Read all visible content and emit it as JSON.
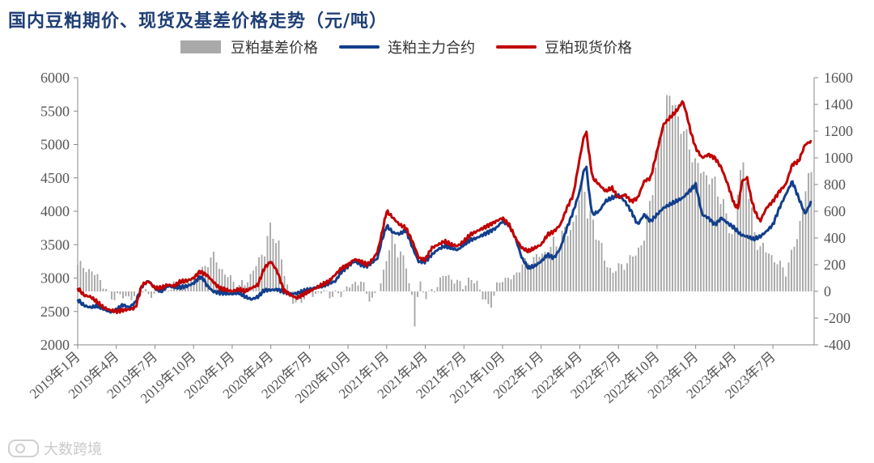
{
  "chart_data": {
    "type": "bar+line",
    "title": "国内豆粕期价、现货及基差价格走势（元/吨）",
    "legend": {
      "basis_label": "豆粕基差价格",
      "futures_label": "连粕主力合约",
      "spot_label": "豆粕现货价格"
    },
    "colors": {
      "basis": "#a9a9a9",
      "futures": "#123f8c",
      "spot": "#c00000",
      "axis": "#888888",
      "text": "#555555"
    },
    "left_axis": {
      "min": 2000,
      "max": 6000,
      "ticks": [
        2000,
        2500,
        3000,
        3500,
        4000,
        4500,
        5000,
        5500,
        6000
      ]
    },
    "right_axis": {
      "min": -400,
      "max": 1600,
      "ticks": [
        -400,
        -200,
        0,
        200,
        400,
        600,
        800,
        1000,
        1200,
        1400,
        1600
      ]
    },
    "x_domain": [
      0,
      57.2
    ],
    "x_ticks": [
      {
        "m": 0,
        "label": "2019年1月"
      },
      {
        "m": 3,
        "label": "2019年4月"
      },
      {
        "m": 6,
        "label": "2019年7月"
      },
      {
        "m": 9,
        "label": "2019年10月"
      },
      {
        "m": 12,
        "label": "2020年1月"
      },
      {
        "m": 15,
        "label": "2020年4月"
      },
      {
        "m": 18,
        "label": "2020年7月"
      },
      {
        "m": 21,
        "label": "2020年10月"
      },
      {
        "m": 24,
        "label": "2021年1月"
      },
      {
        "m": 27,
        "label": "2021年4月"
      },
      {
        "m": 30,
        "label": "2021年7月"
      },
      {
        "m": 33,
        "label": "2021年10月"
      },
      {
        "m": 36,
        "label": "2022年1月"
      },
      {
        "m": 39,
        "label": "2022年4月"
      },
      {
        "m": 42,
        "label": "2022年7月"
      },
      {
        "m": 45,
        "label": "2022年10月"
      },
      {
        "m": 48,
        "label": "2023年1月"
      },
      {
        "m": 51,
        "label": "2023年4月"
      },
      {
        "m": 54,
        "label": "2023年7月"
      }
    ],
    "futures": [
      [
        0,
        2680
      ],
      [
        0.3,
        2620
      ],
      [
        0.6,
        2580
      ],
      [
        1,
        2560
      ],
      [
        1.5,
        2580
      ],
      [
        2,
        2540
      ],
      [
        2.5,
        2490
      ],
      [
        3,
        2520
      ],
      [
        3.5,
        2600
      ],
      [
        4,
        2560
      ],
      [
        4.5,
        2640
      ],
      [
        5,
        2880
      ],
      [
        5.5,
        2960
      ],
      [
        6,
        2850
      ],
      [
        6.5,
        2800
      ],
      [
        7,
        2880
      ],
      [
        7.5,
        2860
      ],
      [
        8,
        2860
      ],
      [
        8.5,
        2880
      ],
      [
        9,
        2920
      ],
      [
        9.5,
        3020
      ],
      [
        9.8,
        2980
      ],
      [
        10,
        2900
      ],
      [
        10.5,
        2800
      ],
      [
        11,
        2780
      ],
      [
        12,
        2760
      ],
      [
        12.5,
        2780
      ],
      [
        13,
        2720
      ],
      [
        13.5,
        2680
      ],
      [
        14,
        2720
      ],
      [
        14.5,
        2820
      ],
      [
        15,
        2820
      ],
      [
        15.5,
        2830
      ],
      [
        16,
        2800
      ],
      [
        16.5,
        2760
      ],
      [
        17,
        2770
      ],
      [
        17.5,
        2800
      ],
      [
        18,
        2830
      ],
      [
        18.5,
        2860
      ],
      [
        19,
        2880
      ],
      [
        19.5,
        2920
      ],
      [
        20,
        2950
      ],
      [
        20.5,
        3100
      ],
      [
        21,
        3180
      ],
      [
        21.5,
        3250
      ],
      [
        22,
        3200
      ],
      [
        22.5,
        3180
      ],
      [
        23,
        3250
      ],
      [
        23.3,
        3300
      ],
      [
        23.6,
        3550
      ],
      [
        24,
        3780
      ],
      [
        24.5,
        3680
      ],
      [
        25,
        3660
      ],
      [
        25.5,
        3720
      ],
      [
        26,
        3460
      ],
      [
        26.5,
        3240
      ],
      [
        27,
        3250
      ],
      [
        27.5,
        3350
      ],
      [
        28,
        3430
      ],
      [
        28.5,
        3480
      ],
      [
        29,
        3450
      ],
      [
        29.5,
        3420
      ],
      [
        30,
        3500
      ],
      [
        30.5,
        3570
      ],
      [
        31,
        3600
      ],
      [
        31.5,
        3650
      ],
      [
        32,
        3700
      ],
      [
        32.5,
        3750
      ],
      [
        33,
        3850
      ],
      [
        33.5,
        3800
      ],
      [
        34,
        3600
      ],
      [
        34.5,
        3300
      ],
      [
        35,
        3150
      ],
      [
        35.5,
        3180
      ],
      [
        36,
        3250
      ],
      [
        36.5,
        3350
      ],
      [
        37,
        3300
      ],
      [
        37.5,
        3450
      ],
      [
        38,
        3750
      ],
      [
        38.5,
        4000
      ],
      [
        39,
        4300
      ],
      [
        39.3,
        4600
      ],
      [
        39.5,
        4680
      ],
      [
        39.8,
        4150
      ],
      [
        40,
        3950
      ],
      [
        40.5,
        4000
      ],
      [
        41,
        4150
      ],
      [
        41.5,
        4200
      ],
      [
        42,
        4240
      ],
      [
        42.5,
        4150
      ],
      [
        43,
        4000
      ],
      [
        43.5,
        3800
      ],
      [
        44,
        3950
      ],
      [
        44.5,
        3850
      ],
      [
        45,
        3950
      ],
      [
        45.5,
        4050
      ],
      [
        46,
        4100
      ],
      [
        46.5,
        4150
      ],
      [
        47,
        4200
      ],
      [
        47.5,
        4300
      ],
      [
        48,
        4400
      ],
      [
        48.5,
        3950
      ],
      [
        49,
        3900
      ],
      [
        49.5,
        3800
      ],
      [
        50,
        3900
      ],
      [
        50.5,
        3820
      ],
      [
        51,
        3750
      ],
      [
        51.5,
        3650
      ],
      [
        52,
        3620
      ],
      [
        52.5,
        3580
      ],
      [
        53,
        3620
      ],
      [
        53.5,
        3700
      ],
      [
        54,
        3800
      ],
      [
        54.5,
        4050
      ],
      [
        55,
        4250
      ],
      [
        55.5,
        4450
      ],
      [
        56,
        4200
      ],
      [
        56.5,
        3960
      ],
      [
        57,
        4150
      ]
    ],
    "spot": [
      [
        0,
        2850
      ],
      [
        0.5,
        2740
      ],
      [
        1,
        2720
      ],
      [
        1.5,
        2640
      ],
      [
        2,
        2560
      ],
      [
        2.5,
        2520
      ],
      [
        3,
        2500
      ],
      [
        3.5,
        2520
      ],
      [
        4,
        2530
      ],
      [
        4.5,
        2560
      ],
      [
        5,
        2900
      ],
      [
        5.5,
        2950
      ],
      [
        6,
        2850
      ],
      [
        6.5,
        2850
      ],
      [
        7,
        2900
      ],
      [
        7.5,
        2880
      ],
      [
        8,
        2950
      ],
      [
        8.5,
        2960
      ],
      [
        9,
        3000
      ],
      [
        9.5,
        3100
      ],
      [
        10,
        3050
      ],
      [
        10.5,
        2950
      ],
      [
        11,
        2850
      ],
      [
        12,
        2800
      ],
      [
        12.5,
        2830
      ],
      [
        13,
        2800
      ],
      [
        13.5,
        2850
      ],
      [
        14,
        2900
      ],
      [
        14.5,
        3150
      ],
      [
        15,
        3250
      ],
      [
        15.5,
        3100
      ],
      [
        16,
        2820
      ],
      [
        16.5,
        2750
      ],
      [
        17,
        2700
      ],
      [
        17.5,
        2750
      ],
      [
        18,
        2800
      ],
      [
        18.5,
        2850
      ],
      [
        19,
        2900
      ],
      [
        19.5,
        2950
      ],
      [
        20,
        3050
      ],
      [
        20.5,
        3150
      ],
      [
        21,
        3200
      ],
      [
        21.5,
        3280
      ],
      [
        22,
        3250
      ],
      [
        22.5,
        3200
      ],
      [
        23,
        3300
      ],
      [
        23.3,
        3400
      ],
      [
        23.6,
        3650
      ],
      [
        24,
        4000
      ],
      [
        24.5,
        3900
      ],
      [
        25,
        3800
      ],
      [
        25.5,
        3750
      ],
      [
        26,
        3550
      ],
      [
        26.5,
        3300
      ],
      [
        27,
        3280
      ],
      [
        27.5,
        3450
      ],
      [
        28,
        3500
      ],
      [
        28.5,
        3550
      ],
      [
        29,
        3500
      ],
      [
        29.5,
        3480
      ],
      [
        30,
        3550
      ],
      [
        30.5,
        3650
      ],
      [
        31,
        3700
      ],
      [
        31.5,
        3750
      ],
      [
        32,
        3800
      ],
      [
        32.5,
        3850
      ],
      [
        33,
        3900
      ],
      [
        33.5,
        3800
      ],
      [
        34,
        3600
      ],
      [
        34.5,
        3450
      ],
      [
        35,
        3400
      ],
      [
        35.5,
        3450
      ],
      [
        36,
        3500
      ],
      [
        36.5,
        3650
      ],
      [
        37,
        3700
      ],
      [
        37.5,
        3800
      ],
      [
        38,
        4050
      ],
      [
        38.5,
        4250
      ],
      [
        39,
        4800
      ],
      [
        39.3,
        5100
      ],
      [
        39.5,
        5200
      ],
      [
        39.8,
        4750
      ],
      [
        40,
        4500
      ],
      [
        40.5,
        4400
      ],
      [
        41,
        4300
      ],
      [
        41.5,
        4350
      ],
      [
        42,
        4200
      ],
      [
        42.5,
        4250
      ],
      [
        43,
        4150
      ],
      [
        43.5,
        4200
      ],
      [
        44,
        4450
      ],
      [
        44.5,
        4500
      ],
      [
        45,
        4900
      ],
      [
        45.5,
        5300
      ],
      [
        46,
        5400
      ],
      [
        46.5,
        5500
      ],
      [
        47,
        5650
      ],
      [
        47.3,
        5450
      ],
      [
        47.6,
        5200
      ],
      [
        48,
        4950
      ],
      [
        48.5,
        4800
      ],
      [
        49,
        4850
      ],
      [
        49.5,
        4800
      ],
      [
        50,
        4650
      ],
      [
        50.5,
        4400
      ],
      [
        51,
        4100
      ],
      [
        51.3,
        4050
      ],
      [
        51.6,
        4450
      ],
      [
        52,
        4500
      ],
      [
        52.3,
        4200
      ],
      [
        52.6,
        4000
      ],
      [
        53,
        3850
      ],
      [
        53.5,
        4050
      ],
      [
        54,
        4150
      ],
      [
        54.5,
        4300
      ],
      [
        55,
        4400
      ],
      [
        55.5,
        4700
      ],
      [
        56,
        4750
      ],
      [
        56.5,
        5000
      ],
      [
        57,
        5050
      ]
    ],
    "basis": [
      [
        0,
        200
      ],
      [
        0.5,
        180
      ],
      [
        1,
        150
      ],
      [
        1.5,
        120
      ],
      [
        2,
        50
      ],
      [
        2.5,
        -50
      ],
      [
        3,
        -30
      ],
      [
        3.5,
        -40
      ],
      [
        4,
        -40
      ],
      [
        4.5,
        -50
      ],
      [
        5,
        30
      ],
      [
        5.5,
        -40
      ],
      [
        6,
        -10
      ],
      [
        6.5,
        30
      ],
      [
        7,
        30
      ],
      [
        7.5,
        40
      ],
      [
        8,
        70
      ],
      [
        8.5,
        80
      ],
      [
        9,
        100
      ],
      [
        9.5,
        120
      ],
      [
        10,
        200
      ],
      [
        10.5,
        280
      ],
      [
        11,
        180
      ],
      [
        12,
        80
      ],
      [
        12.5,
        40
      ],
      [
        13,
        60
      ],
      [
        13.5,
        130
      ],
      [
        14,
        220
      ],
      [
        14.5,
        320
      ],
      [
        14.8,
        400
      ],
      [
        15,
        460
      ],
      [
        15.5,
        400
      ],
      [
        16,
        150
      ],
      [
        16.5,
        -40
      ],
      [
        17,
        -110
      ],
      [
        17.5,
        -40
      ],
      [
        18,
        -20
      ],
      [
        18.5,
        -20
      ],
      [
        19,
        0
      ],
      [
        19.5,
        -20
      ],
      [
        20,
        -30
      ],
      [
        20.5,
        -10
      ],
      [
        21,
        30
      ],
      [
        21.5,
        60
      ],
      [
        22,
        80
      ],
      [
        22.5,
        -30
      ],
      [
        23,
        -60
      ],
      [
        23.5,
        50
      ],
      [
        24,
        250
      ],
      [
        24.5,
        400
      ],
      [
        25,
        300
      ],
      [
        25.5,
        200
      ],
      [
        26,
        -60
      ],
      [
        26.2,
        -280
      ],
      [
        26.5,
        80
      ],
      [
        27,
        -30
      ],
      [
        27.5,
        -10
      ],
      [
        28,
        60
      ],
      [
        28.5,
        130
      ],
      [
        29,
        100
      ],
      [
        29.5,
        60
      ],
      [
        30,
        50
      ],
      [
        30.5,
        80
      ],
      [
        31,
        80
      ],
      [
        31.5,
        -60
      ],
      [
        32,
        -120
      ],
      [
        32.5,
        20
      ],
      [
        33,
        100
      ],
      [
        33.5,
        90
      ],
      [
        34,
        120
      ],
      [
        34.5,
        200
      ],
      [
        35,
        220
      ],
      [
        35.5,
        250
      ],
      [
        36,
        280
      ],
      [
        36.5,
        300
      ],
      [
        37,
        350
      ],
      [
        37.5,
        400
      ],
      [
        38,
        450
      ],
      [
        38.5,
        500
      ],
      [
        39,
        700
      ],
      [
        39.3,
        850
      ],
      [
        39.6,
        600
      ],
      [
        40,
        500
      ],
      [
        40.5,
        400
      ],
      [
        41,
        200
      ],
      [
        41.5,
        150
      ],
      [
        42,
        180
      ],
      [
        42.5,
        200
      ],
      [
        43,
        250
      ],
      [
        43.5,
        300
      ],
      [
        44,
        400
      ],
      [
        44.5,
        700
      ],
      [
        45,
        1000
      ],
      [
        45.5,
        1250
      ],
      [
        45.8,
        1480
      ],
      [
        46,
        1450
      ],
      [
        46.5,
        1350
      ],
      [
        47,
        1200
      ],
      [
        47.5,
        1100
      ],
      [
        48,
        950
      ],
      [
        48.5,
        900
      ],
      [
        49,
        850
      ],
      [
        49.5,
        800
      ],
      [
        50,
        700
      ],
      [
        50.5,
        500
      ],
      [
        51,
        400
      ],
      [
        51.3,
        800
      ],
      [
        51.6,
        950
      ],
      [
        52,
        850
      ],
      [
        52.3,
        600
      ],
      [
        52.6,
        400
      ],
      [
        53,
        350
      ],
      [
        53.5,
        300
      ],
      [
        54,
        250
      ],
      [
        54.5,
        200
      ],
      [
        55,
        150
      ],
      [
        55.5,
        300
      ],
      [
        56,
        450
      ],
      [
        56.5,
        750
      ],
      [
        57,
        900
      ]
    ]
  }
}
